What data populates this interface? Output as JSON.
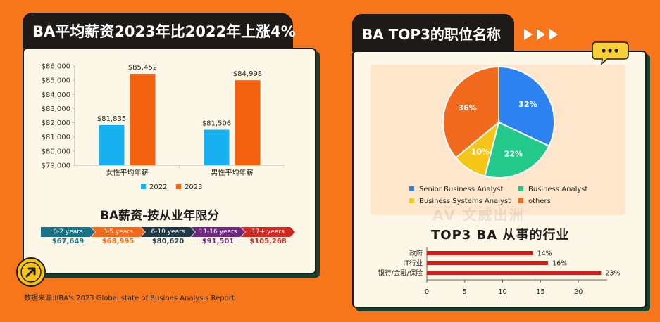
{
  "left_panel": {
    "title": "BA平均薪资2023年比2022年上涨4%",
    "subtitle": "BA薪资-按从业年限分",
    "years_bands": [
      {
        "label": "0-2 years",
        "amount": "$67,649",
        "color": "#1b7287"
      },
      {
        "label": "3-5 years",
        "amount": "$68,995",
        "color": "#f26a1e"
      },
      {
        "label": "6-10 years",
        "amount": "$80,620",
        "color": "#1f3a46"
      },
      {
        "label": "11-16 years",
        "amount": "$91,501",
        "color": "#6d2a7e"
      },
      {
        "label": "17+ years",
        "amount": "$105,268",
        "color": "#cf2a22"
      }
    ]
  },
  "right_panel": {
    "title": "BA TOP3的职位名称",
    "industry_title": "TOP3 BA 从事的行业"
  },
  "source": "数据来源:IIBA's 2023 Global state of Busines Analysis Report",
  "watermark": "AV 文威出洲",
  "colors": {
    "orange": "#f7761c",
    "blue_2022": "#17b0f0",
    "orange_2023": "#f2620f",
    "dark": "#1d1a18",
    "bar_red": "#cf1f1a"
  },
  "chart_data": [
    {
      "type": "bar",
      "categories": [
        "女性平均年薪",
        "男性平均年薪"
      ],
      "series": [
        {
          "name": "2022",
          "values": [
            81835,
            81506
          ],
          "color": "#17b0f0"
        },
        {
          "name": "2023",
          "values": [
            85452,
            84998
          ],
          "color": "#f2620f"
        }
      ],
      "data_labels": [
        [
          "$81,835",
          "$81,506"
        ],
        [
          "$85,452",
          "$84,998"
        ]
      ],
      "ylim": [
        79000,
        86000
      ],
      "yticks": [
        79000,
        80000,
        81000,
        82000,
        83000,
        84000,
        85000,
        86000
      ],
      "ytick_labels": [
        "$79,000",
        "$80,000",
        "$81,000",
        "$82,000",
        "$83,000",
        "$84,000",
        "$85,000",
        "$86,000"
      ],
      "legend": "bottom",
      "grid": false
    },
    {
      "type": "pie",
      "labels": [
        "Senior Business Analyst",
        "Business Analyst",
        "Business Systems Analyst",
        "others"
      ],
      "values": [
        32,
        22,
        10,
        36
      ],
      "value_labels": [
        "32%",
        "22%",
        "10%",
        "36%"
      ],
      "colors": [
        "#2d82f2",
        "#22c98a",
        "#f5c518",
        "#f26a1e"
      ],
      "legend": "bottom"
    },
    {
      "type": "bar",
      "orientation": "horizontal",
      "title": "TOP3 BA 从事的行业",
      "categories": [
        "政府",
        "IT行业",
        "银行/金融/保险"
      ],
      "values": [
        14,
        16,
        23
      ],
      "value_labels": [
        "14%",
        "16%",
        "23%"
      ],
      "xlim": [
        0,
        23.8
      ],
      "xticks": [
        0,
        5,
        10,
        15,
        20
      ],
      "color": "#cf1f1a",
      "grid": false
    }
  ]
}
